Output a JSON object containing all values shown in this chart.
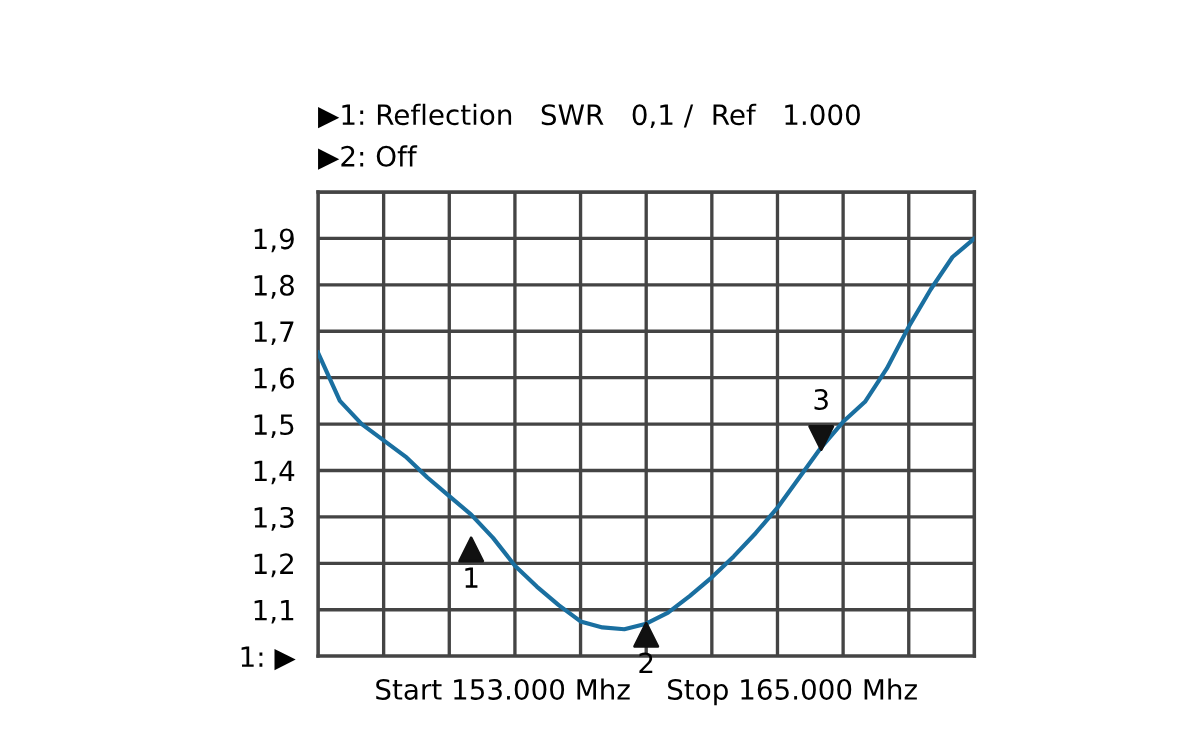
{
  "chart_data": {
    "type": "line",
    "title": "▶1: Reflection   SWR   0,1 /  Ref   1.000",
    "subtitle": "▶2: Off",
    "xlabel": "Start 153.000 Mhz    Stop 165.000 Mhz",
    "categories": [
      null,
      null,
      null,
      null,
      null,
      null,
      null,
      null,
      null,
      null,
      null,
      null,
      null,
      null,
      null,
      null,
      null,
      null,
      null,
      null,
      null,
      null,
      null,
      null,
      null,
      null,
      null,
      null,
      null,
      null,
      null
    ],
    "series": [
      {
        "color": "#1a6fa0",
        "values": [
          1.654,
          1.55,
          1.5,
          1.465,
          1.43,
          1.385,
          1.345,
          1.305,
          1.255,
          1.195,
          1.15,
          1.11,
          1.075,
          1.062,
          1.058,
          1.07,
          1.094,
          1.13,
          1.17,
          1.215,
          1.265,
          1.32,
          1.385,
          1.45,
          1.505,
          1.548,
          1.62,
          1.71,
          1.79,
          1.86,
          1.9
        ]
      },
      {
        "type": "scatter",
        "color": "#111111",
        "values": [
          null,
          null,
          null,
          null,
          null,
          null,
          null,
          1.23,
          null,
          null,
          null,
          null,
          null,
          null,
          null,
          1.046,
          null,
          null,
          null,
          null,
          null,
          null,
          null,
          1.47,
          null,
          null,
          null,
          null,
          null,
          null,
          null
        ]
      }
    ],
    "annotations": [
      "1",
      "2",
      "3"
    ],
    "ylim": [
      1,
      2
    ],
    "yticks": [
      {
        "value": 1,
        "label": "1: ▶"
      },
      {
        "value": 1.1,
        "label": "1,1"
      },
      {
        "value": 1.2,
        "label": "1,2"
      },
      {
        "value": 1.3,
        "label": "1,3"
      },
      {
        "value": 1.4,
        "label": "1,4"
      },
      {
        "value": 1.5,
        "label": "1,5"
      },
      {
        "value": 1.6,
        "label": "1,6"
      },
      {
        "value": 1.7,
        "label": "1,7"
      },
      {
        "value": 1.8,
        "label": "1,8"
      },
      {
        "value": 1.9,
        "label": "1,9"
      },
      {
        "value": 2,
        "label": null
      }
    ],
    "tick_labels": "y",
    "grid": true,
    "line_style": "solid"
  }
}
